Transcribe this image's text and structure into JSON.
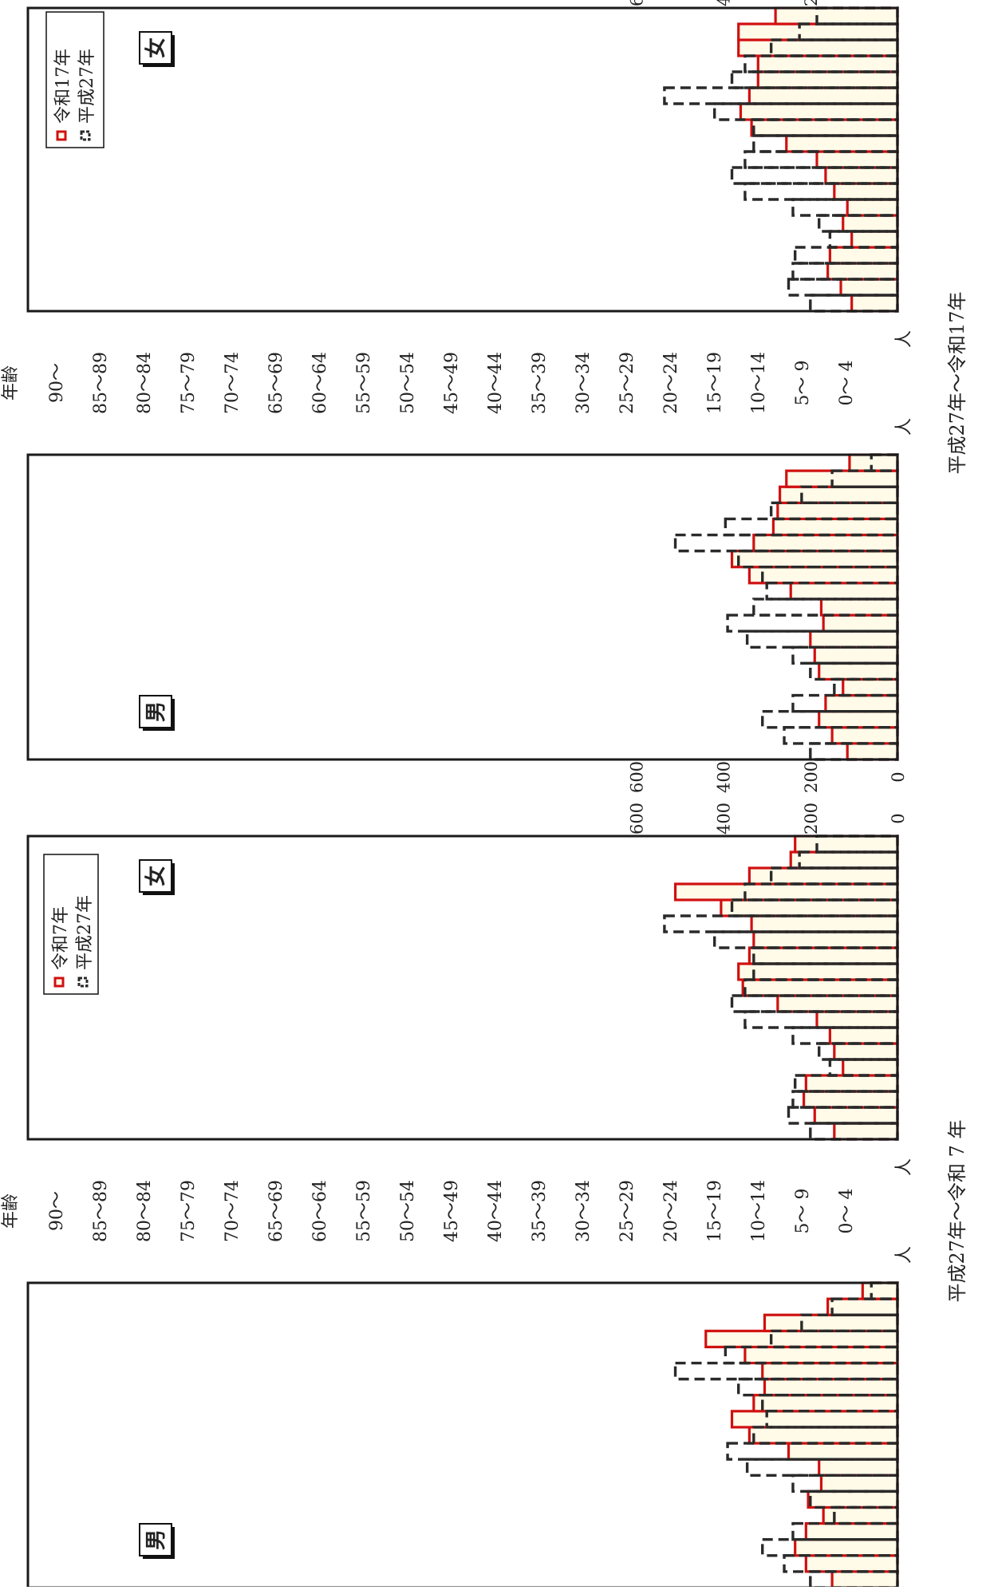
{
  "age_axis_label": "年齢",
  "unit_label_left": "人",
  "unit_label_right": "人",
  "sex_labels": {
    "male": "男",
    "female": "女"
  },
  "age_groups": [
    "0～ 4",
    "5～ 9",
    "10～14",
    "15～19",
    "20～24",
    "25～29",
    "30～34",
    "35～39",
    "40～44",
    "45～49",
    "50～54",
    "55～59",
    "60～64",
    "65～69",
    "70～74",
    "75～79",
    "80～84",
    "85～89",
    "90～"
  ],
  "ticks": [
    "0",
    "200",
    "400",
    "600"
  ],
  "colors": {
    "projected": "#d01010",
    "baseline": "#2a2a2a",
    "fill": "#fffbe8"
  },
  "chart_data": [
    {
      "type": "bar",
      "title": "",
      "caption": "平成27年～令和 7 年",
      "categories": [
        "0～ 4",
        "5～ 9",
        "10～14",
        "15～19",
        "20～24",
        "25～29",
        "30～34",
        "35～39",
        "40～44",
        "45～49",
        "50～54",
        "55～59",
        "60～64",
        "65～69",
        "70～74",
        "75～79",
        "80～84",
        "85～89",
        "90～"
      ],
      "legend": [
        "令和7年",
        "平成27年"
      ],
      "legend_placement": "top-left",
      "xlim": [
        0,
        700
      ],
      "series": [
        {
          "name": "令和7年",
          "group": "男",
          "values": [
            150,
            210,
            235,
            210,
            170,
            205,
            175,
            180,
            250,
            340,
            380,
            330,
            305,
            310,
            350,
            440,
            305,
            160,
            80
          ]
        },
        {
          "name": "平成27年",
          "group": "男",
          "values": [
            200,
            260,
            310,
            240,
            145,
            200,
            240,
            345,
            390,
            330,
            300,
            310,
            365,
            510,
            395,
            290,
            220,
            150,
            60
          ]
        },
        {
          "name": "令和7年",
          "group": "女",
          "values": [
            145,
            190,
            215,
            210,
            125,
            145,
            155,
            185,
            275,
            355,
            365,
            340,
            330,
            335,
            405,
            510,
            340,
            245,
            235
          ]
        },
        {
          "name": "平成27年",
          "group": "女",
          "values": [
            200,
            250,
            240,
            235,
            155,
            180,
            240,
            350,
            380,
            350,
            330,
            330,
            420,
            535,
            380,
            350,
            290,
            225,
            185
          ]
        }
      ]
    },
    {
      "type": "bar",
      "title": "",
      "caption": "平成27年～令和17年",
      "categories": [
        "0～ 4",
        "5～ 9",
        "10～14",
        "15～19",
        "20～24",
        "25～29",
        "30～34",
        "35～39",
        "40～44",
        "45～49",
        "50～54",
        "55～59",
        "60～64",
        "65～69",
        "70～74",
        "75～79",
        "80～84",
        "85～89",
        "90～"
      ],
      "legend": [
        "令和17年",
        "平成27年"
      ],
      "legend_placement": "top-left",
      "xlim": [
        0,
        700
      ],
      "series": [
        {
          "name": "令和17年",
          "group": "男",
          "values": [
            115,
            150,
            180,
            165,
            125,
            180,
            190,
            200,
            170,
            175,
            245,
            340,
            380,
            330,
            285,
            275,
            270,
            255,
            110
          ]
        },
        {
          "name": "平成27年",
          "group": "男",
          "values": [
            200,
            260,
            310,
            240,
            145,
            200,
            240,
            345,
            390,
            330,
            300,
            310,
            365,
            510,
            395,
            290,
            220,
            150,
            60
          ]
        },
        {
          "name": "令和17年",
          "group": "女",
          "values": [
            105,
            130,
            160,
            155,
            105,
            125,
            115,
            145,
            165,
            185,
            255,
            335,
            360,
            340,
            320,
            320,
            365,
            365,
            280
          ]
        },
        {
          "name": "平成27年",
          "group": "女",
          "values": [
            200,
            250,
            240,
            235,
            155,
            180,
            240,
            350,
            380,
            350,
            330,
            330,
            420,
            535,
            380,
            350,
            290,
            225,
            185
          ]
        }
      ]
    }
  ]
}
